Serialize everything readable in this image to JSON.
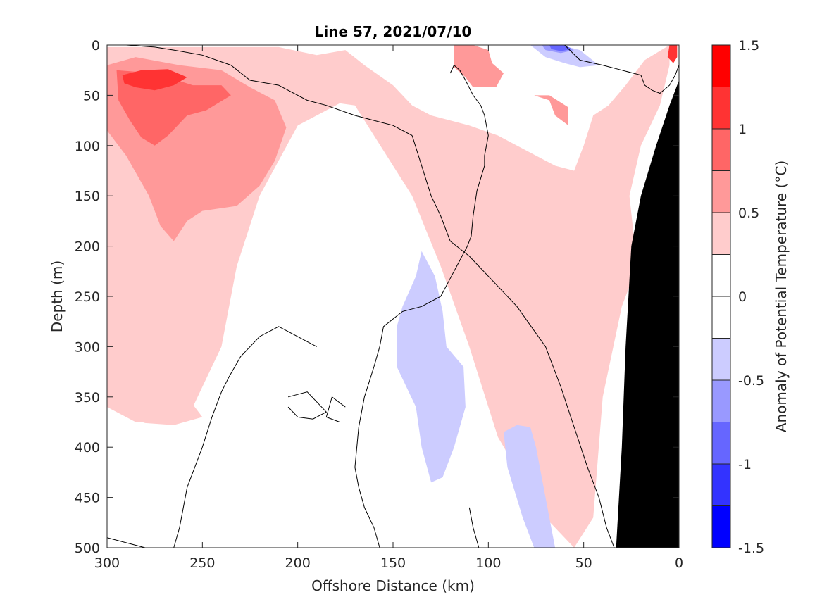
{
  "chart_data": {
    "type": "contour",
    "title": "Line 57, 2021/07/10",
    "xlabel": "Offshore Distance (km)",
    "ylabel": "Depth (m)",
    "xlim": [
      300,
      0
    ],
    "ylim": [
      500,
      0
    ],
    "x_ticks": [
      300,
      250,
      200,
      150,
      100,
      50,
      0
    ],
    "y_ticks": [
      0,
      50,
      100,
      150,
      200,
      250,
      300,
      350,
      400,
      450,
      500
    ],
    "colorbar": {
      "label": "Anomaly of Potential Temperature (°C)",
      "range": [
        -1.5,
        1.5
      ],
      "tick_labels": [
        "1.5",
        "1",
        "0.5",
        "0",
        "-0.5",
        "-1",
        "-1.5"
      ],
      "tick_values": [
        1.5,
        1,
        0.5,
        0,
        -0.5,
        -1,
        -1.5
      ],
      "levels": [
        {
          "min": 1.25,
          "max": 1.5,
          "color": "#ff0000"
        },
        {
          "min": 1.0,
          "max": 1.25,
          "color": "#ff3333"
        },
        {
          "min": 0.75,
          "max": 1.0,
          "color": "#ff6666"
        },
        {
          "min": 0.5,
          "max": 0.75,
          "color": "#ff9999"
        },
        {
          "min": 0.25,
          "max": 0.5,
          "color": "#ffcccc"
        },
        {
          "min": 0.0,
          "max": 0.25,
          "color": "#ffffff"
        },
        {
          "min": -0.25,
          "max": 0.0,
          "color": "#ffffff"
        },
        {
          "min": -0.5,
          "max": -0.25,
          "color": "#ccccff"
        },
        {
          "min": -0.75,
          "max": -0.5,
          "color": "#9999ff"
        },
        {
          "min": -1.0,
          "max": -0.75,
          "color": "#6666ff"
        },
        {
          "min": -1.25,
          "max": -1.0,
          "color": "#3333ff"
        },
        {
          "min": -1.5,
          "max": -1.25,
          "color": "#0000ff"
        }
      ]
    },
    "filled_regions": [
      {
        "level": 0.375,
        "color": "#ffcccc",
        "points": [
          [
            300,
            2
          ],
          [
            210,
            2
          ],
          [
            190,
            10
          ],
          [
            175,
            5
          ],
          [
            165,
            20
          ],
          [
            150,
            40
          ],
          [
            140,
            60
          ],
          [
            130,
            70
          ],
          [
            110,
            80
          ],
          [
            95,
            90
          ],
          [
            75,
            110
          ],
          [
            65,
            120
          ],
          [
            55,
            125
          ],
          [
            50,
            100
          ],
          [
            45,
            70
          ],
          [
            37,
            60
          ],
          [
            28,
            40
          ],
          [
            18,
            15
          ],
          [
            5,
            0
          ],
          [
            5,
            20
          ],
          [
            10,
            60
          ],
          [
            20,
            100
          ],
          [
            26,
            150
          ],
          [
            22,
            220
          ],
          [
            30,
            260
          ],
          [
            40,
            350
          ],
          [
            45,
            470
          ],
          [
            55,
            500
          ],
          [
            70,
            470
          ],
          [
            95,
            390
          ],
          [
            110,
            300
          ],
          [
            125,
            220
          ],
          [
            140,
            150
          ],
          [
            160,
            90
          ],
          [
            170,
            60
          ],
          [
            178,
            58
          ],
          [
            200,
            80
          ],
          [
            220,
            150
          ],
          [
            232,
            220
          ],
          [
            240,
            300
          ],
          [
            250,
            340
          ],
          [
            255,
            360
          ],
          [
            265,
            375
          ],
          [
            285,
            375
          ],
          [
            300,
            360
          ]
        ]
      },
      {
        "level": 0.375,
        "color": "#ffcccc",
        "points": [
          [
            265,
            235
          ],
          [
            270,
            250
          ],
          [
            268,
            280
          ],
          [
            266,
            310
          ],
          [
            262,
            330
          ],
          [
            256,
            355
          ],
          [
            250,
            370
          ],
          [
            265,
            378
          ],
          [
            280,
            376
          ],
          [
            290,
            370
          ],
          [
            300,
            355
          ],
          [
            300,
            200
          ],
          [
            285,
            230
          ]
        ]
      },
      {
        "level": 0.625,
        "color": "#ff9999",
        "points": [
          [
            300,
            20
          ],
          [
            285,
            12
          ],
          [
            262,
            20
          ],
          [
            240,
            25
          ],
          [
            225,
            42
          ],
          [
            212,
            55
          ],
          [
            206,
            82
          ],
          [
            212,
            115
          ],
          [
            220,
            140
          ],
          [
            232,
            160
          ],
          [
            250,
            165
          ],
          [
            258,
            175
          ],
          [
            265,
            195
          ],
          [
            272,
            180
          ],
          [
            278,
            150
          ],
          [
            290,
            110
          ],
          [
            300,
            85
          ]
        ]
      },
      {
        "level": 0.875,
        "color": "#ff6666",
        "points": [
          [
            295,
            25
          ],
          [
            275,
            28
          ],
          [
            255,
            40
          ],
          [
            240,
            40
          ],
          [
            235,
            50
          ],
          [
            248,
            65
          ],
          [
            258,
            70
          ],
          [
            268,
            90
          ],
          [
            275,
            100
          ],
          [
            282,
            92
          ],
          [
            288,
            75
          ],
          [
            294,
            55
          ]
        ]
      },
      {
        "level": 1.125,
        "color": "#ff3333",
        "points": [
          [
            292,
            30
          ],
          [
            282,
            25
          ],
          [
            268,
            24
          ],
          [
            258,
            32
          ],
          [
            265,
            40
          ],
          [
            275,
            45
          ],
          [
            285,
            42
          ],
          [
            291,
            38
          ]
        ]
      },
      {
        "level": 0.625,
        "color": "#ff9999",
        "points": [
          [
            118,
            0
          ],
          [
            108,
            0
          ],
          [
            100,
            5
          ],
          [
            98,
            18
          ],
          [
            92,
            28
          ],
          [
            96,
            42
          ],
          [
            108,
            42
          ],
          [
            112,
            32
          ],
          [
            118,
            22
          ]
        ]
      },
      {
        "level": 0.625,
        "color": "#ff9999",
        "points": [
          [
            76,
            50
          ],
          [
            68,
            55
          ],
          [
            65,
            70
          ],
          [
            58,
            80
          ],
          [
            58,
            62
          ],
          [
            68,
            50
          ]
        ]
      },
      {
        "level": 1.125,
        "color": "#ff3333",
        "points": [
          [
            1,
            0
          ],
          [
            5,
            0
          ],
          [
            6,
            12
          ],
          [
            3,
            18
          ],
          [
            1,
            12
          ]
        ]
      },
      {
        "level": -0.375,
        "color": "#ccccff",
        "points": [
          [
            135,
            205
          ],
          [
            128,
            230
          ],
          [
            124,
            265
          ],
          [
            122,
            300
          ],
          [
            113,
            320
          ],
          [
            112,
            360
          ],
          [
            118,
            400
          ],
          [
            124,
            430
          ],
          [
            130,
            435
          ],
          [
            135,
            400
          ],
          [
            138,
            360
          ],
          [
            148,
            320
          ],
          [
            148,
            280
          ],
          [
            145,
            260
          ],
          [
            138,
            230
          ]
        ]
      },
      {
        "level": -0.375,
        "color": "#ccccff",
        "points": [
          [
            92,
            385
          ],
          [
            90,
            420
          ],
          [
            82,
            470
          ],
          [
            76,
            500
          ],
          [
            65,
            500
          ],
          [
            68,
            470
          ],
          [
            72,
            430
          ],
          [
            75,
            400
          ],
          [
            78,
            380
          ],
          [
            85,
            378
          ]
        ]
      },
      {
        "level": -0.375,
        "color": "#ccccff",
        "points": [
          [
            78,
            0
          ],
          [
            62,
            0
          ],
          [
            52,
            5
          ],
          [
            42,
            20
          ],
          [
            52,
            22
          ],
          [
            60,
            18
          ],
          [
            70,
            12
          ]
        ]
      },
      {
        "level": -0.625,
        "color": "#9999ff",
        "points": [
          [
            72,
            0
          ],
          [
            62,
            0
          ],
          [
            55,
            5
          ],
          [
            62,
            8
          ],
          [
            70,
            5
          ]
        ]
      },
      {
        "level": -0.875,
        "color": "#6666ff",
        "points": [
          [
            68,
            0
          ],
          [
            60,
            0
          ],
          [
            56,
            4
          ],
          [
            62,
            6
          ],
          [
            67,
            4
          ]
        ]
      }
    ],
    "zero_contours": [
      [
        [
          120,
          28
        ],
        [
          118,
          20
        ],
        [
          115,
          25
        ],
        [
          112,
          35
        ],
        [
          108,
          50
        ],
        [
          104,
          60
        ],
        [
          102,
          70
        ],
        [
          100,
          90
        ],
        [
          102,
          110
        ],
        [
          102,
          120
        ],
        [
          106,
          145
        ],
        [
          108,
          170
        ],
        [
          109,
          190
        ],
        [
          111,
          200
        ],
        [
          118,
          225
        ],
        [
          125,
          250
        ],
        [
          135,
          260
        ],
        [
          145,
          265
        ],
        [
          155,
          280
        ],
        [
          157,
          300
        ],
        [
          160,
          320
        ],
        [
          165,
          350
        ],
        [
          168,
          380
        ],
        [
          170,
          420
        ],
        [
          168,
          440
        ],
        [
          165,
          460
        ],
        [
          160,
          480
        ],
        [
          157,
          500
        ]
      ],
      [
        [
          290,
          0
        ],
        [
          275,
          2
        ],
        [
          265,
          5
        ],
        [
          250,
          10
        ],
        [
          235,
          20
        ],
        [
          225,
          35
        ],
        [
          210,
          40
        ],
        [
          195,
          55
        ],
        [
          185,
          60
        ],
        [
          170,
          70
        ],
        [
          160,
          75
        ],
        [
          150,
          80
        ],
        [
          140,
          90
        ]
      ],
      [
        [
          140,
          90
        ],
        [
          135,
          120
        ],
        [
          130,
          150
        ],
        [
          125,
          170
        ],
        [
          120,
          195
        ],
        [
          110,
          210
        ],
        [
          95,
          240
        ],
        [
          85,
          260
        ],
        [
          70,
          300
        ],
        [
          62,
          340
        ],
        [
          55,
          380
        ],
        [
          48,
          420
        ],
        [
          42,
          450
        ],
        [
          38,
          480
        ],
        [
          34,
          500
        ]
      ],
      [
        [
          190,
          300
        ],
        [
          210,
          280
        ],
        [
          220,
          290
        ],
        [
          230,
          310
        ],
        [
          236,
          330
        ],
        [
          240,
          345
        ],
        [
          245,
          370
        ],
        [
          250,
          400
        ],
        [
          254,
          420
        ],
        [
          258,
          440
        ],
        [
          260,
          460
        ],
        [
          262,
          480
        ],
        [
          265,
          500
        ]
      ],
      [
        [
          205,
          350
        ],
        [
          195,
          345
        ],
        [
          185,
          365
        ],
        [
          192,
          372
        ],
        [
          200,
          370
        ],
        [
          205,
          360
        ]
      ],
      [
        [
          175,
          360
        ],
        [
          182,
          350
        ],
        [
          185,
          370
        ],
        [
          178,
          375
        ]
      ],
      [
        [
          300,
          490
        ],
        [
          290,
          495
        ],
        [
          280,
          500
        ]
      ],
      [
        [
          110,
          460
        ],
        [
          108,
          480
        ],
        [
          105,
          500
        ]
      ],
      [
        [
          60,
          0
        ],
        [
          52,
          15
        ],
        [
          40,
          20
        ],
        [
          30,
          25
        ],
        [
          20,
          30
        ],
        [
          18,
          40
        ],
        [
          14,
          45
        ],
        [
          10,
          48
        ],
        [
          5,
          40
        ],
        [
          2,
          30
        ],
        [
          0,
          20
        ]
      ]
    ],
    "land_mask": [
      [
        0,
        35
      ],
      [
        5,
        60
      ],
      [
        12,
        100
      ],
      [
        20,
        150
      ],
      [
        25,
        200
      ],
      [
        28,
        300
      ],
      [
        30,
        400
      ],
      [
        33,
        500
      ],
      [
        0,
        500
      ]
    ]
  }
}
